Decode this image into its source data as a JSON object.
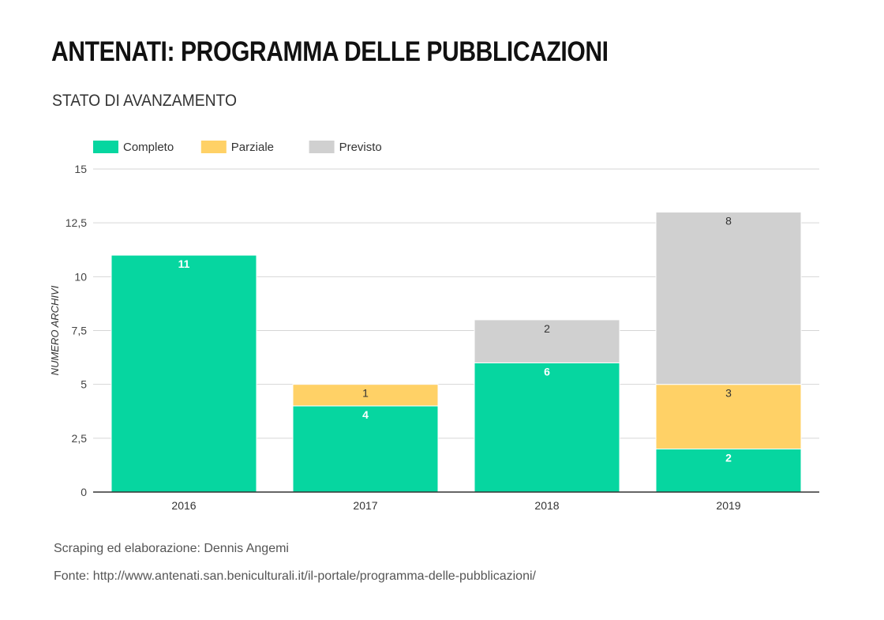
{
  "header": {
    "title": "ANTENATI: PROGRAMMA DELLE PUBBLICAZIONI",
    "subtitle": "STATO DI AVANZAMENTO"
  },
  "footer": {
    "credit": "Scraping ed elaborazione: Dennis Angemi",
    "source": "Fonte: http://www.antenati.san.beniculturali.it/il-portale/programma-delle-pubblicazioni/"
  },
  "chart_data": {
    "type": "bar",
    "stacked": true,
    "categories": [
      "2016",
      "2017",
      "2018",
      "2019"
    ],
    "series": [
      {
        "name": "Completo",
        "color": "#06d6a0",
        "label_color": "#ffffff",
        "values": [
          11,
          4,
          6,
          2
        ]
      },
      {
        "name": "Parziale",
        "color": "#ffd166",
        "label_color": "#333333",
        "values": [
          0,
          1,
          0,
          3
        ]
      },
      {
        "name": "Previsto",
        "color": "#d0d0d0",
        "label_color": "#333333",
        "values": [
          0,
          0,
          2,
          8
        ]
      }
    ],
    "ylabel": "NUMERO ARCHIVI",
    "xlabel": "",
    "ylim": [
      0,
      15
    ],
    "yticks": [
      0,
      2.5,
      5,
      7.5,
      10,
      12.5,
      15
    ],
    "ytick_labels": [
      "0",
      "2,5",
      "5",
      "7,5",
      "10",
      "12,5",
      "15"
    ],
    "grid": true,
    "legend_position": "top-left"
  }
}
